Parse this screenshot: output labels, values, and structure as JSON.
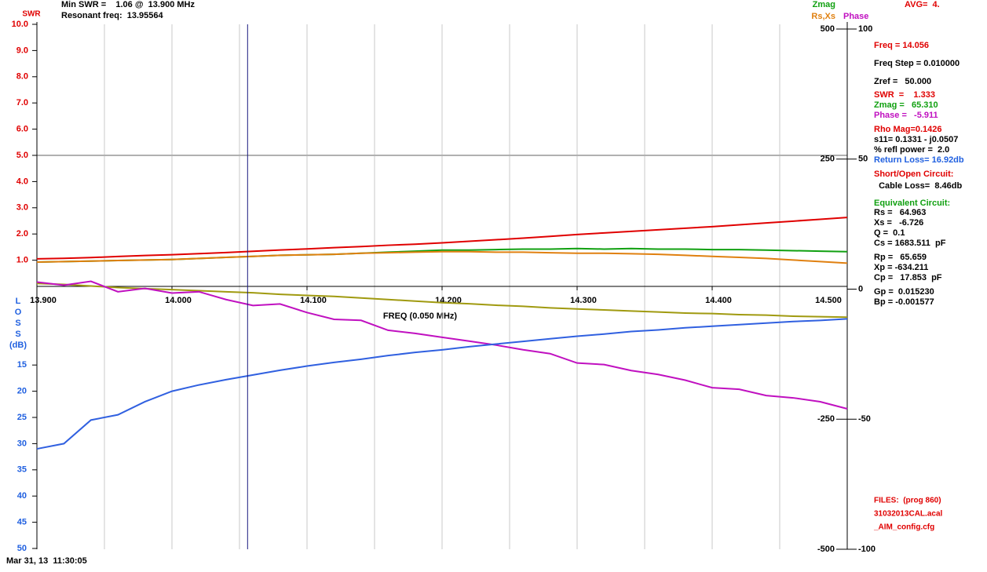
{
  "chart_data": {
    "type": "line",
    "header": [
      "Min SWR =    1.06 @  13.900 MHz",
      "Resonant freq:  13.95564"
    ],
    "avg": "AVG=  4.",
    "rs_xs_label": "Rs,Xs",
    "x_label": "FREQ (0.050 MHz)",
    "timestamp": "Mar 31, 13  11:30:05",
    "loss_axis_label": [
      "L",
      "O",
      "S",
      "S",
      "(dB)"
    ],
    "cursor_x": 14.056,
    "xlim": [
      13.9,
      14.5
    ],
    "xticks": [
      {
        "value": 13.9,
        "label": "13.900"
      },
      {
        "value": 14.0,
        "label": "14.000"
      },
      {
        "value": 14.1,
        "label": "14.100"
      },
      {
        "value": 14.2,
        "label": "14.200"
      },
      {
        "value": 14.3,
        "label": "14.300"
      },
      {
        "value": 14.4,
        "label": "14.400"
      },
      {
        "value": 14.5,
        "label": "14.500"
      }
    ],
    "xgrid": [
      13.95,
      14.0,
      14.05,
      14.1,
      14.15,
      14.2,
      14.25,
      14.3,
      14.35,
      14.4,
      14.45
    ],
    "axes": {
      "swr": {
        "lim": [
          0,
          10
        ],
        "color": "#e00000",
        "grid_values": [
          5
        ],
        "ticks": [
          {
            "value": 10,
            "label": "10.0"
          },
          {
            "value": 9,
            "label": "9.0"
          },
          {
            "value": 8,
            "label": "8.0"
          },
          {
            "value": 7,
            "label": "7.0"
          },
          {
            "value": 6,
            "label": "6.0"
          },
          {
            "value": 5,
            "label": "5.0"
          },
          {
            "value": 4,
            "label": "4.0"
          },
          {
            "value": 3,
            "label": "3.0"
          },
          {
            "value": 2,
            "label": "2.0"
          },
          {
            "value": 1,
            "label": "1.0"
          }
        ]
      },
      "loss": {
        "lim": [
          0,
          50
        ],
        "color": "#2060e0",
        "ticks": [
          15,
          20,
          25,
          30,
          35,
          40,
          45,
          50
        ]
      },
      "z": {
        "lim": [
          -500,
          500
        ],
        "color": "#000000",
        "ticks": [
          500,
          250,
          -250,
          -500
        ]
      },
      "phase": {
        "lim": [
          -100,
          100
        ],
        "color": "#000000",
        "ticks": [
          100,
          50,
          0,
          -50,
          -100
        ]
      }
    },
    "x": [
      13.9,
      13.92,
      13.94,
      13.96,
      13.98,
      14.0,
      14.02,
      14.04,
      14.06,
      14.08,
      14.1,
      14.12,
      14.14,
      14.16,
      14.18,
      14.2,
      14.22,
      14.24,
      14.26,
      14.28,
      14.3,
      14.32,
      14.34,
      14.36,
      14.38,
      14.4,
      14.42,
      14.44,
      14.46,
      14.48,
      14.5
    ],
    "series": [
      {
        "name": "SWR",
        "axis": "swr",
        "color": "#e00000",
        "values": [
          1.05,
          1.07,
          1.1,
          1.14,
          1.18,
          1.21,
          1.25,
          1.29,
          1.34,
          1.39,
          1.43,
          1.48,
          1.52,
          1.57,
          1.61,
          1.66,
          1.72,
          1.78,
          1.84,
          1.91,
          1.98,
          2.04,
          2.1,
          2.16,
          2.22,
          2.28,
          2.35,
          2.42,
          2.49,
          2.56,
          2.63
        ]
      },
      {
        "name": "Zmag",
        "axis": "z",
        "color": "#10a010",
        "values": [
          52,
          53,
          54,
          55,
          56,
          57,
          59,
          61,
          63,
          65,
          66,
          67,
          69,
          71,
          73,
          75,
          75,
          76,
          77,
          77,
          78,
          77,
          78,
          77,
          77,
          76,
          76,
          75,
          74,
          73,
          72
        ]
      },
      {
        "axis": "z",
        "color": "#e08010",
        "values": [
          52,
          53,
          54,
          55,
          56,
          57,
          59,
          61,
          63,
          65,
          66,
          67,
          69,
          70,
          71,
          72,
          72,
          71,
          71,
          70,
          69,
          69,
          68,
          67,
          65,
          63,
          61,
          59,
          56,
          53,
          50
        ]
      },
      {
        "axis": "z",
        "color": "#a09a10",
        "values": [
          11,
          9,
          6,
          3,
          1,
          -1,
          -3,
          -5,
          -7,
          -10,
          -12,
          -14,
          -17,
          -20,
          -23,
          -26,
          -28,
          -31,
          -33,
          -36,
          -38,
          -40,
          -42,
          -44,
          -46,
          -47,
          -49,
          -50,
          -52,
          -53,
          -54
        ]
      },
      {
        "name": "Phase",
        "axis": "phase",
        "color": "#c010c0",
        "values": [
          2.7,
          1.5,
          3,
          -1,
          0.3,
          -1.5,
          -1,
          -4,
          -6.3,
          -5.7,
          -9,
          -11.6,
          -12,
          -15.8,
          -17,
          -18.5,
          -20,
          -21.5,
          -23.3,
          -24.8,
          -28.4,
          -29,
          -31.3,
          -32.8,
          -35,
          -37.9,
          -38.5,
          -40.9,
          -41.8,
          -43.3,
          -46
        ]
      },
      {
        "axis": "loss",
        "color": "#3060e0",
        "values": [
          31,
          30,
          25.5,
          24.5,
          22,
          20,
          18.8,
          17.8,
          16.9,
          16,
          15.2,
          14.5,
          13.9,
          13.2,
          12.6,
          12.1,
          11.5,
          11.0,
          10.5,
          10.0,
          9.5,
          9.1,
          8.6,
          8.3,
          7.9,
          7.6,
          7.3,
          7.0,
          6.7,
          6.5,
          6.2
        ]
      }
    ],
    "panel": [
      {
        "text": "Freq = 14.056",
        "color": "#e00000"
      },
      {
        "text": "Freq Step = 0.010000",
        "color": "#000000"
      },
      {
        "text": "Zref =   50.000",
        "color": "#000000"
      },
      {
        "text": "SWR  =    1.333",
        "color": "#e00000"
      },
      {
        "text": "Zmag =   65.310",
        "color": "#10a010"
      },
      {
        "text": "Phase =   -5.911",
        "color": "#c010c0"
      },
      {
        "text": "Rho Mag=0.1426",
        "color": "#e00000"
      },
      {
        "text": "s11= 0.1331 - j0.0507",
        "color": "#000000"
      },
      {
        "text": "% refl power =  2.0",
        "color": "#000000"
      },
      {
        "text": "Return Loss= 16.92db",
        "color": "#2060e0"
      },
      {
        "text": "Short/Open Circuit:",
        "color": "#e00000"
      },
      {
        "text": "  Cable Loss=  8.46db",
        "color": "#000000"
      },
      {
        "text": "Equivalent Circuit:",
        "color": "#10a010"
      },
      {
        "text": "Rs =   64.963",
        "color": "#000000"
      },
      {
        "text": "Xs =   -6.726",
        "color": "#000000"
      },
      {
        "text": "Q =  0.1",
        "color": "#000000"
      },
      {
        "text": "Cs = 1683.511  pF",
        "color": "#000000"
      },
      {
        "text": "Rp =   65.659",
        "color": "#000000"
      },
      {
        "text": "Xp = -634.211",
        "color": "#000000"
      },
      {
        "text": "Cp =   17.853  pF",
        "color": "#000000"
      },
      {
        "text": "Gp =  0.015230",
        "color": "#000000"
      },
      {
        "text": "Bp = -0.001577",
        "color": "#000000"
      },
      {
        "text": "FILES:  (prog 860)",
        "color": "#e00000"
      },
      {
        "text": "31032013CAL.acal",
        "color": "#e00000"
      },
      {
        "text": "_AIM_config.cfg",
        "color": "#e00000"
      }
    ]
  }
}
